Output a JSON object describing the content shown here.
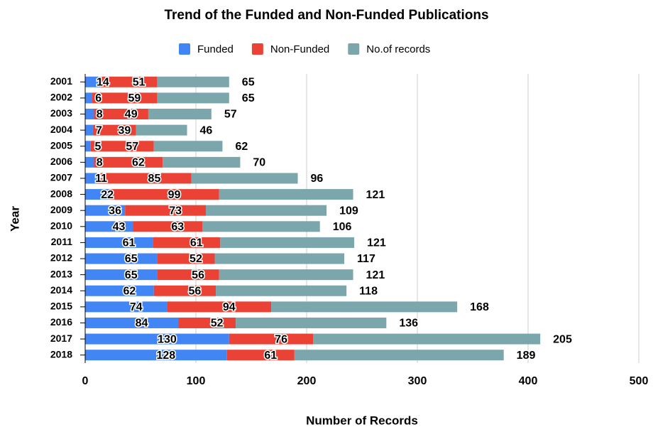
{
  "chart_data": {
    "type": "stacked-barh",
    "title": "Trend of the Funded and  Non-Funded Publications",
    "xlabel": "Number of Records",
    "ylabel": "Year",
    "categories": [
      "2001",
      "2002",
      "2003",
      "2004",
      "2005",
      "2006",
      "2007",
      "2008",
      "2009",
      "2010",
      "2011",
      "2012",
      "2013",
      "2014",
      "2015",
      "2016",
      "2017",
      "2018"
    ],
    "series": [
      {
        "name": "Funded",
        "color": "#4285f4",
        "values": [
          14,
          6,
          8,
          7,
          5,
          8,
          11,
          22,
          36,
          43,
          61,
          65,
          65,
          62,
          74,
          84,
          130,
          128
        ]
      },
      {
        "name": "Non-Funded",
        "color": "#ea4335",
        "values": [
          51,
          59,
          49,
          39,
          57,
          62,
          85,
          99,
          73,
          63,
          61,
          52,
          56,
          56,
          94,
          52,
          76,
          61
        ]
      },
      {
        "name": "No.of records",
        "color": "#7aa6ac",
        "values": [
          65,
          65,
          57,
          46,
          62,
          70,
          96,
          121,
          109,
          106,
          121,
          117,
          121,
          118,
          168,
          136,
          205,
          189
        ]
      }
    ],
    "xlim": [
      0,
      500
    ],
    "xticks": [
      0,
      100,
      200,
      300,
      400,
      500
    ],
    "grid": true,
    "legend": "top"
  }
}
